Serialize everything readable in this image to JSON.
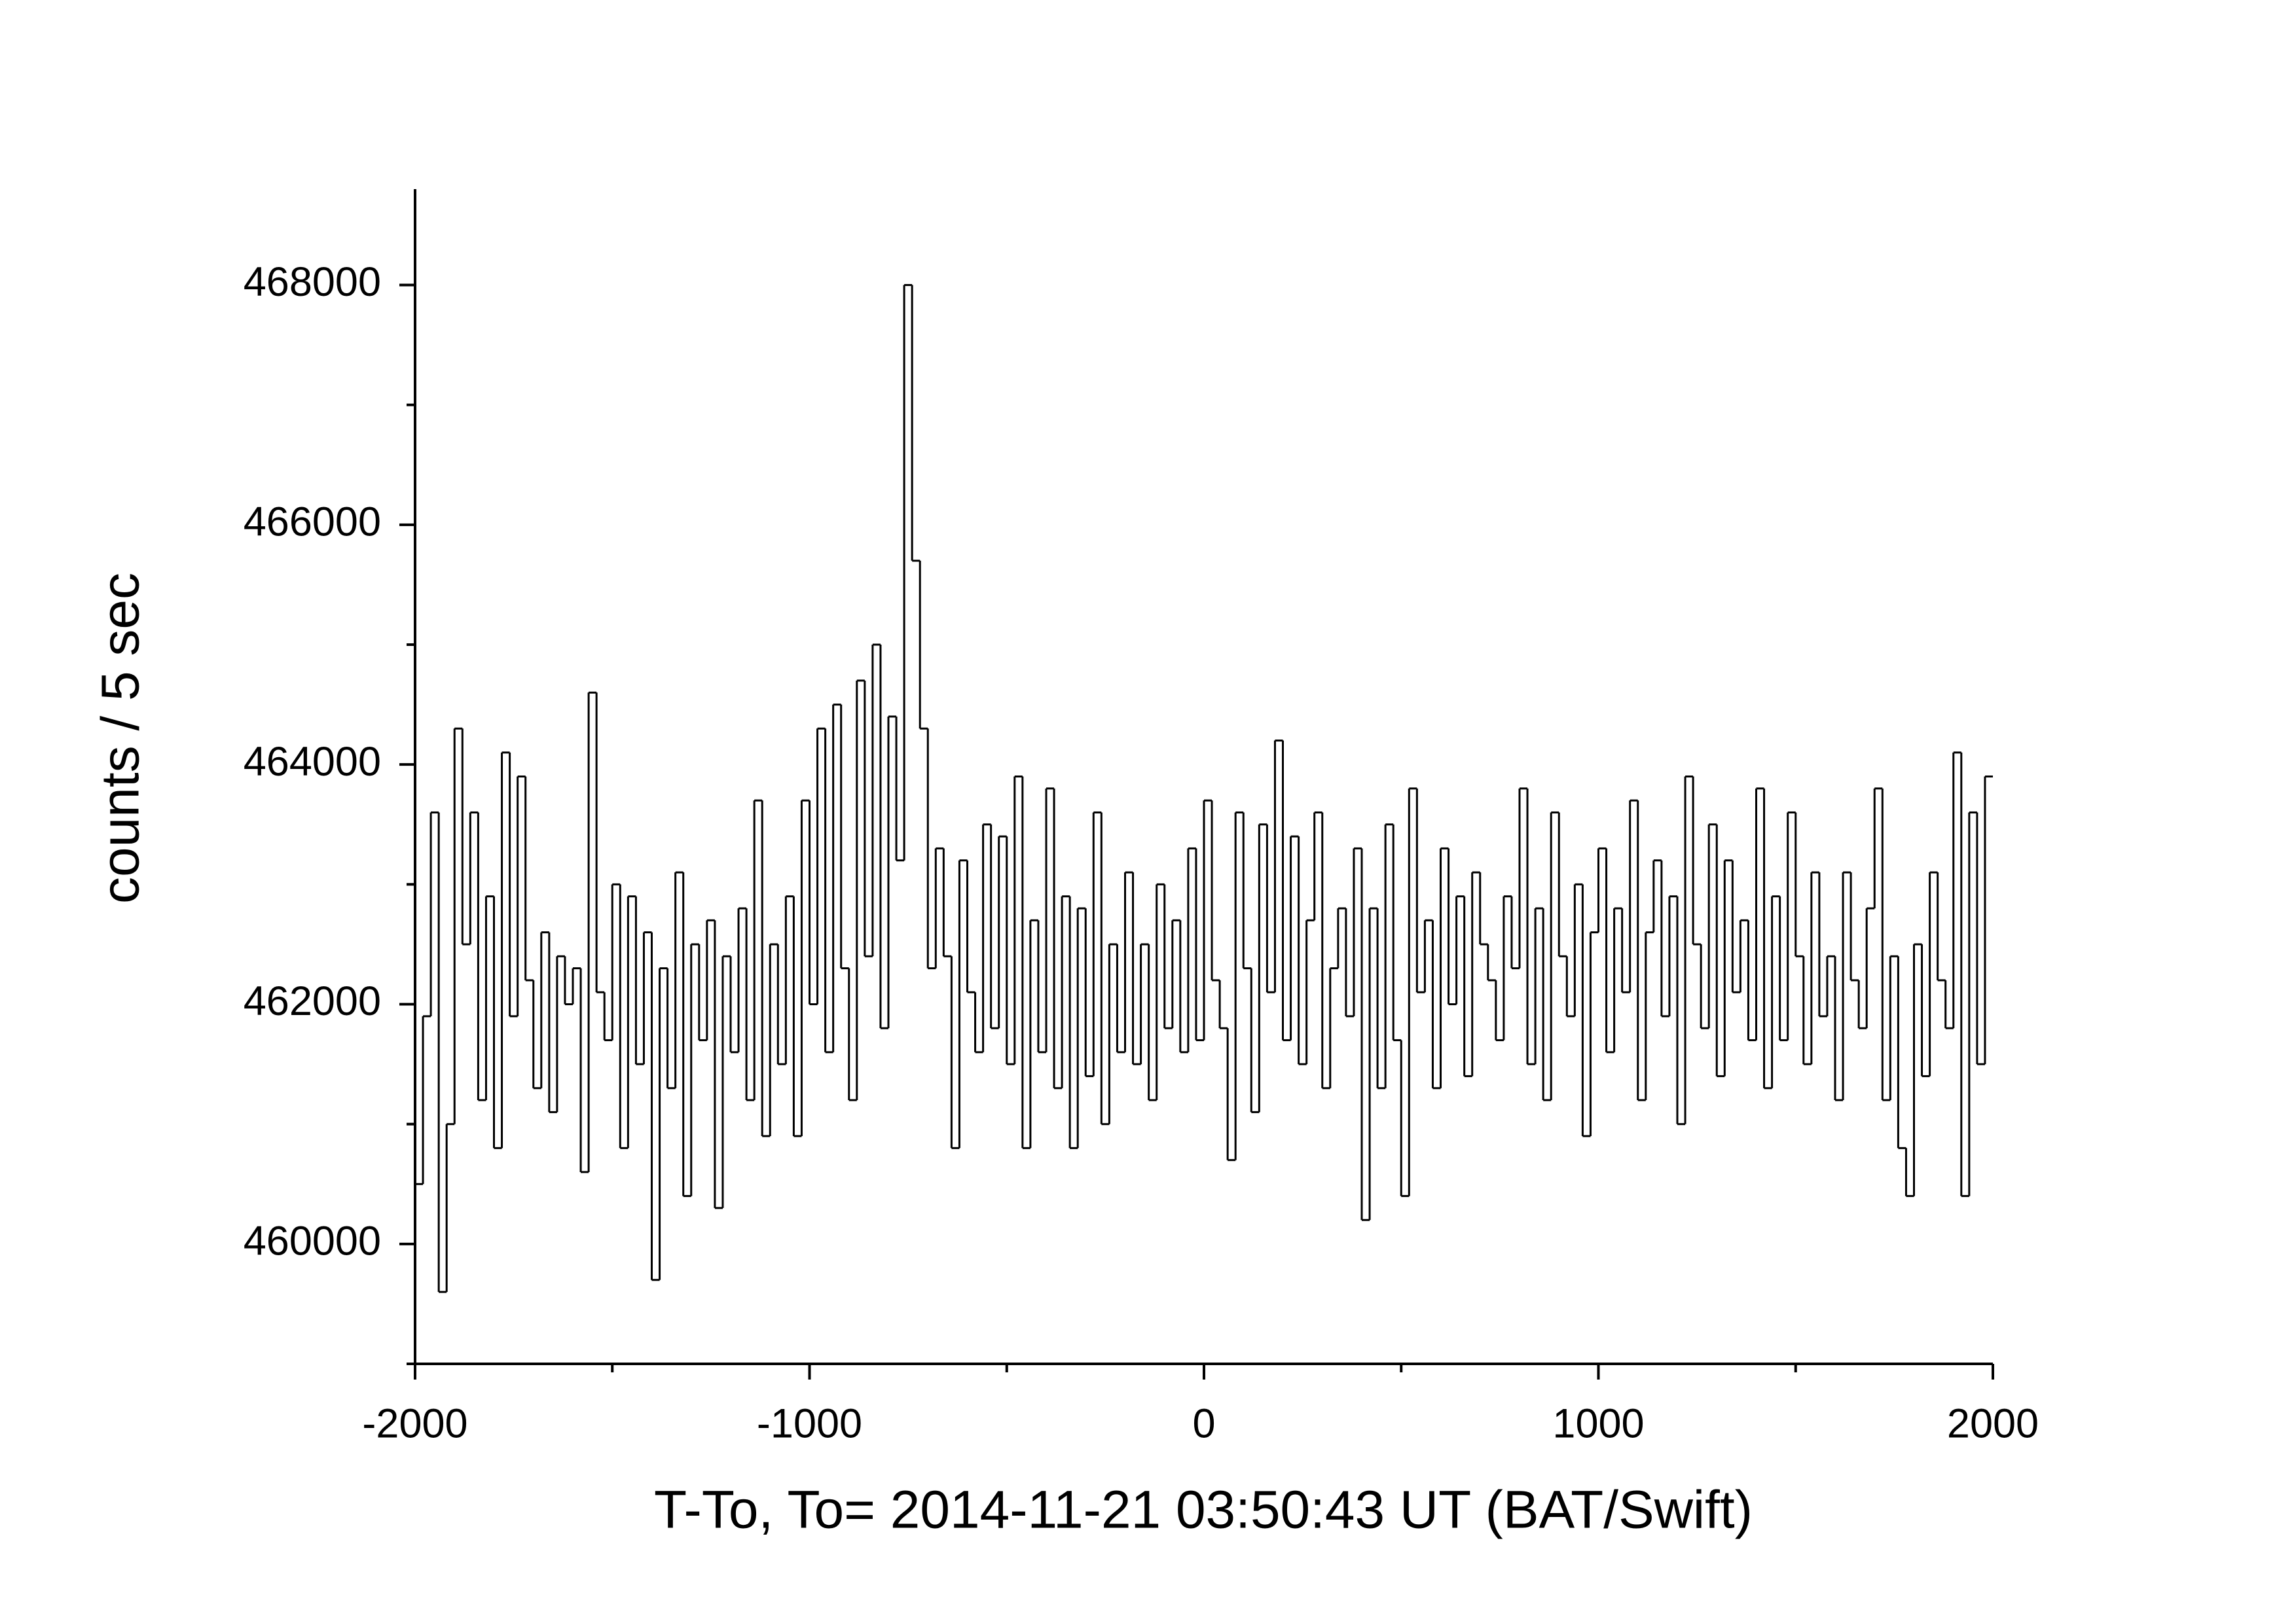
{
  "chart_data": {
    "type": "step",
    "x_label": "T-To, To= 2014-11-21 03:50:43 UT (BAT/Swift)",
    "y_label": "counts / 5 sec",
    "color": "#000000",
    "xlim": [
      -2000,
      2000
    ],
    "xticks": [
      -2000,
      -1000,
      0,
      1000,
      2000
    ],
    "xminorticks": [
      -1500,
      -500,
      500,
      1500
    ],
    "ylim": [
      459000,
      468800
    ],
    "yticks": [
      460000,
      462000,
      464000,
      466000,
      468000
    ],
    "yminorticks": [
      459000,
      461000,
      463000,
      465000,
      467000
    ],
    "x": [
      -2000,
      -1980,
      -1960,
      -1940,
      -1920,
      -1900,
      -1880,
      -1860,
      -1840,
      -1820,
      -1800,
      -1780,
      -1760,
      -1740,
      -1720,
      -1700,
      -1680,
      -1660,
      -1640,
      -1620,
      -1600,
      -1580,
      -1560,
      -1540,
      -1520,
      -1500,
      -1480,
      -1460,
      -1440,
      -1420,
      -1400,
      -1380,
      -1360,
      -1340,
      -1320,
      -1300,
      -1280,
      -1260,
      -1240,
      -1220,
      -1200,
      -1180,
      -1160,
      -1140,
      -1120,
      -1100,
      -1080,
      -1060,
      -1040,
      -1020,
      -1000,
      -980,
      -960,
      -940,
      -920,
      -900,
      -880,
      -860,
      -840,
      -820,
      -800,
      -780,
      -760,
      -740,
      -720,
      -700,
      -680,
      -660,
      -640,
      -620,
      -600,
      -580,
      -560,
      -540,
      -520,
      -500,
      -480,
      -460,
      -440,
      -420,
      -400,
      -380,
      -360,
      -340,
      -320,
      -300,
      -280,
      -260,
      -240,
      -220,
      -200,
      -180,
      -160,
      -140,
      -120,
      -100,
      -80,
      -60,
      -40,
      -20,
      0,
      20,
      40,
      60,
      80,
      100,
      120,
      140,
      160,
      180,
      200,
      220,
      240,
      260,
      280,
      300,
      320,
      340,
      360,
      380,
      400,
      420,
      440,
      460,
      480,
      500,
      520,
      540,
      560,
      580,
      600,
      620,
      640,
      660,
      680,
      700,
      720,
      740,
      760,
      780,
      800,
      820,
      840,
      860,
      880,
      900,
      920,
      940,
      960,
      980,
      1000,
      1020,
      1040,
      1060,
      1080,
      1100,
      1120,
      1140,
      1160,
      1180,
      1200,
      1220,
      1240,
      1260,
      1280,
      1300,
      1320,
      1340,
      1360,
      1380,
      1400,
      1420,
      1440,
      1460,
      1480,
      1500,
      1520,
      1540,
      1560,
      1580,
      1600,
      1620,
      1640,
      1660,
      1680,
      1700,
      1720,
      1740,
      1760,
      1780,
      1800,
      1820,
      1840,
      1860,
      1880,
      1900,
      1920,
      1940,
      1960,
      1980
    ],
    "values": [
      460500,
      461900,
      463600,
      459600,
      461000,
      464300,
      462500,
      463600,
      461200,
      462900,
      460800,
      464100,
      461900,
      463900,
      462200,
      461300,
      462600,
      461100,
      462400,
      462000,
      462300,
      460600,
      464600,
      462100,
      461700,
      463000,
      460800,
      462900,
      461500,
      462600,
      459700,
      462300,
      461300,
      463100,
      460400,
      462500,
      461700,
      462700,
      460300,
      462400,
      461600,
      462800,
      461200,
      463700,
      460900,
      462500,
      461500,
      462900,
      460900,
      463700,
      462000,
      464300,
      461600,
      464500,
      462300,
      461200,
      464700,
      462400,
      465000,
      461800,
      464400,
      463200,
      468000,
      465700,
      464300,
      462300,
      463300,
      462400,
      460800,
      463200,
      462100,
      461600,
      463500,
      461800,
      463400,
      461500,
      463900,
      460800,
      462700,
      461600,
      463800,
      461300,
      462900,
      460800,
      462800,
      461400,
      463600,
      461000,
      462500,
      461600,
      463100,
      461500,
      462500,
      461200,
      463000,
      461800,
      462700,
      461600,
      463300,
      461700,
      463700,
      462200,
      461800,
      460700,
      463600,
      462300,
      461100,
      463500,
      462100,
      464200,
      461700,
      463400,
      461500,
      462700,
      463600,
      461300,
      462300,
      462800,
      461900,
      463300,
      460200,
      462800,
      461300,
      463500,
      461700,
      460400,
      463800,
      462100,
      462700,
      461300,
      463300,
      462000,
      462900,
      461400,
      463100,
      462500,
      462200,
      461700,
      462900,
      462300,
      463800,
      461500,
      462800,
      461200,
      463600,
      462400,
      461900,
      463000,
      460900,
      462600,
      463300,
      461600,
      462800,
      462100,
      463700,
      461200,
      462600,
      463200,
      461900,
      462900,
      461000,
      463900,
      462500,
      461800,
      463500,
      461400,
      463200,
      462100,
      462700,
      461700,
      463800,
      461300,
      462900,
      461700,
      463600,
      462400,
      461500,
      463100,
      461900,
      462400,
      461200,
      463100,
      462200,
      461800,
      462800,
      463800,
      461200,
      462400,
      460800,
      460400,
      462500,
      461400,
      463100,
      462200,
      461800,
      464100,
      460400,
      463600,
      461500,
      463900
    ]
  }
}
